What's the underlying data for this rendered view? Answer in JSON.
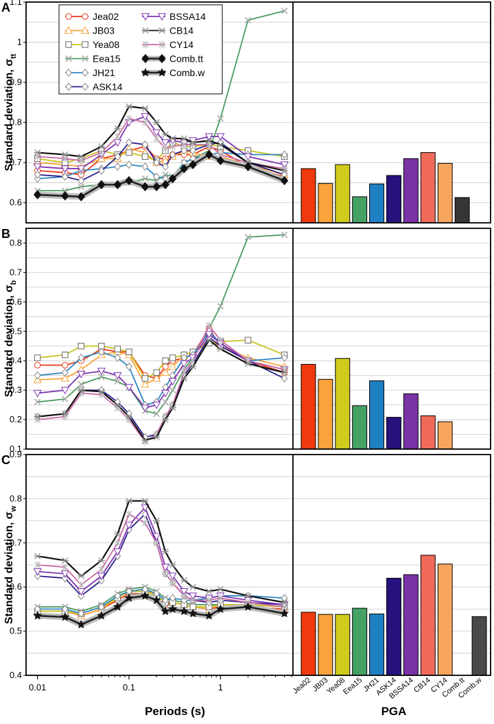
{
  "chart_data": {
    "type": "line",
    "xlabel": "Periods (s)",
    "bar_xlabel": "PGA",
    "x_ticks": [
      "0.01",
      "0.1",
      "1"
    ],
    "x_periods": [
      0.01,
      0.02,
      0.03,
      0.05,
      0.075,
      0.1,
      0.15,
      0.2,
      0.25,
      0.3,
      0.4,
      0.5,
      0.75,
      1,
      2,
      5
    ],
    "models": [
      {
        "key": "Jea02",
        "name": "Jea02",
        "color": "#e8381a",
        "marker": "circle"
      },
      {
        "key": "JB03",
        "name": "JB03",
        "color": "#f7a43a",
        "marker": "triangle"
      },
      {
        "key": "Yea08",
        "name": "Yea08",
        "color": "#c9c31b",
        "marker": "square"
      },
      {
        "key": "Eea15",
        "name": "Eea15",
        "color": "#4a9c5e",
        "marker": "x"
      },
      {
        "key": "JH21",
        "name": "JH21",
        "color": "#2c86c2",
        "marker": "diamond"
      },
      {
        "key": "ASK14",
        "name": "ASK14",
        "color": "#2a1f8c",
        "marker": "diamond"
      },
      {
        "key": "BSSA14",
        "name": "BSSA14",
        "color": "#7d35b0",
        "marker": "invtriangle"
      },
      {
        "key": "CB14",
        "name": "CB14",
        "color": "#111111",
        "marker": "starx"
      },
      {
        "key": "CY14",
        "name": "CY14",
        "color": "#c96aa5",
        "marker": "asterisk"
      },
      {
        "key": "Combtt",
        "name": "Comb.tt",
        "color": "#111111",
        "marker": "bigdiamond"
      },
      {
        "key": "Combw",
        "name": "Comb.w",
        "color": "#111111",
        "marker": "star"
      }
    ],
    "panels": [
      {
        "letter": "A",
        "ylabel": "Standard deviation, σ",
        "ysub": "tt",
        "ylim": [
          0.55,
          1.1
        ],
        "yticks": [
          0.6,
          0.7,
          0.8,
          0.9,
          1.0,
          1.1
        ],
        "ytick_labels": [
          "0.6",
          "0.7",
          "0.8",
          "0.9",
          "1",
          "1.1"
        ],
        "series": {
          "Jea02": [
            0.68,
            0.675,
            0.67,
            0.71,
            0.72,
            0.73,
            0.74,
            0.71,
            0.71,
            0.72,
            0.72,
            0.72,
            0.74,
            0.73,
            0.69,
            0.665
          ],
          "JB03": [
            0.7,
            0.695,
            0.69,
            0.71,
            0.71,
            0.735,
            0.725,
            0.7,
            0.705,
            0.715,
            0.73,
            0.725,
            0.715,
            0.715,
            0.695,
            0.67
          ],
          "Yea08": [
            0.71,
            0.7,
            0.71,
            0.73,
            0.72,
            0.725,
            0.715,
            0.705,
            0.73,
            0.75,
            0.74,
            0.74,
            0.745,
            0.74,
            0.73,
            0.715
          ],
          "Eea15": [
            0.63,
            0.63,
            0.64,
            0.645,
            0.645,
            0.65,
            0.66,
            0.655,
            0.67,
            0.665,
            0.7,
            0.71,
            0.73,
            0.81,
            1.055,
            1.078
          ],
          "JH21": [
            0.66,
            0.665,
            0.68,
            0.685,
            0.69,
            0.695,
            0.69,
            0.665,
            0.66,
            0.66,
            0.7,
            0.71,
            0.72,
            0.725,
            0.72,
            0.72
          ],
          "ASK14": [
            0.67,
            0.665,
            0.655,
            0.68,
            0.715,
            0.75,
            0.745,
            0.7,
            0.69,
            0.72,
            0.73,
            0.73,
            0.745,
            0.75,
            0.7,
            0.67
          ],
          "BSSA14": [
            0.69,
            0.685,
            0.685,
            0.72,
            0.75,
            0.8,
            0.815,
            0.775,
            0.75,
            0.755,
            0.75,
            0.755,
            0.765,
            0.765,
            0.715,
            0.695
          ],
          "CB14": [
            0.725,
            0.72,
            0.715,
            0.74,
            0.785,
            0.84,
            0.835,
            0.8,
            0.77,
            0.76,
            0.76,
            0.75,
            0.755,
            0.745,
            0.7,
            0.68
          ],
          "CY14": [
            0.715,
            0.71,
            0.705,
            0.725,
            0.765,
            0.81,
            0.8,
            0.76,
            0.735,
            0.74,
            0.745,
            0.745,
            0.745,
            0.72,
            0.7,
            0.685
          ],
          "Combtt": [
            0.62,
            0.617,
            0.615,
            0.645,
            0.645,
            0.655,
            0.64,
            0.64,
            0.645,
            0.66,
            0.685,
            0.695,
            0.72,
            0.705,
            0.69,
            0.655
          ]
        },
        "bars": {
          "Jea02": 0.685,
          "JB03": 0.648,
          "Yea08": 0.695,
          "Eea15": 0.615,
          "JH21": 0.647,
          "ASK14": 0.668,
          "BSSA14": 0.71,
          "CB14": 0.725,
          "CY14": 0.698,
          "Combtt": 0.613
        }
      },
      {
        "letter": "B",
        "ylabel": "Standard deviation, σ",
        "ysub": "b",
        "ylim": [
          0.1,
          0.85
        ],
        "yticks": [
          0.1,
          0.2,
          0.3,
          0.4,
          0.5,
          0.6,
          0.7,
          0.8
        ],
        "ytick_labels": [
          "0.1",
          "0.2",
          "0.3",
          "0.4",
          "0.5",
          "0.6",
          "0.7",
          "0.8"
        ],
        "series": {
          "Jea02": [
            0.385,
            0.385,
            0.4,
            0.44,
            0.43,
            0.43,
            0.35,
            0.34,
            0.38,
            0.4,
            0.41,
            0.42,
            0.51,
            0.45,
            0.4,
            0.36
          ],
          "JB03": [
            0.335,
            0.34,
            0.37,
            0.42,
            0.43,
            0.42,
            0.32,
            0.34,
            0.36,
            0.38,
            0.42,
            0.43,
            0.47,
            0.45,
            0.41,
            0.38
          ],
          "Yea08": [
            0.41,
            0.42,
            0.45,
            0.45,
            0.44,
            0.43,
            0.34,
            0.36,
            0.4,
            0.41,
            0.42,
            0.43,
            0.46,
            0.465,
            0.47,
            0.42
          ],
          "Eea15": [
            0.26,
            0.27,
            0.32,
            0.345,
            0.33,
            0.31,
            0.23,
            0.22,
            0.26,
            0.3,
            0.37,
            0.41,
            0.51,
            0.585,
            0.82,
            0.828
          ],
          "JH21": [
            0.35,
            0.36,
            0.41,
            0.43,
            0.41,
            0.38,
            0.25,
            0.26,
            0.31,
            0.35,
            0.41,
            0.42,
            0.5,
            0.46,
            0.4,
            0.41
          ],
          "ASK14": [
            0.21,
            0.22,
            0.3,
            0.3,
            0.26,
            0.22,
            0.14,
            0.15,
            0.21,
            0.25,
            0.35,
            0.39,
            0.48,
            0.45,
            0.4,
            0.34
          ],
          "BSSA14": [
            0.29,
            0.3,
            0.355,
            0.365,
            0.35,
            0.31,
            0.24,
            0.25,
            0.29,
            0.33,
            0.39,
            0.41,
            0.49,
            0.46,
            0.4,
            0.37
          ],
          "CB14": [
            0.21,
            0.22,
            0.3,
            0.295,
            0.25,
            0.21,
            0.13,
            0.14,
            0.2,
            0.24,
            0.34,
            0.38,
            0.47,
            0.44,
            0.39,
            0.36
          ],
          "CY14": [
            0.2,
            0.21,
            0.29,
            0.285,
            0.24,
            0.2,
            0.125,
            0.15,
            0.21,
            0.25,
            0.36,
            0.4,
            0.52,
            0.47,
            0.4,
            0.37
          ]
        },
        "bars": {
          "Jea02": 0.388,
          "JB03": 0.337,
          "Yea08": 0.408,
          "Eea15": 0.247,
          "JH21": 0.332,
          "ASK14": 0.208,
          "BSSA14": 0.288,
          "CB14": 0.213,
          "CY14": 0.193
        }
      },
      {
        "letter": "C",
        "ylabel": "Standard deviation, σ",
        "ysub": "w",
        "ylim": [
          0.4,
          0.9
        ],
        "yticks": [
          0.4,
          0.5,
          0.6,
          0.7,
          0.8,
          0.9
        ],
        "ytick_labels": [
          "0.4",
          "0.5",
          "0.6",
          "0.7",
          "0.8",
          "0.9"
        ],
        "series": {
          "Jea02": [
            0.545,
            0.545,
            0.535,
            0.55,
            0.57,
            0.585,
            0.585,
            0.575,
            0.56,
            0.565,
            0.56,
            0.555,
            0.55,
            0.555,
            0.555,
            0.55
          ],
          "JB03": [
            0.545,
            0.545,
            0.535,
            0.55,
            0.575,
            0.59,
            0.595,
            0.58,
            0.565,
            0.565,
            0.56,
            0.555,
            0.55,
            0.56,
            0.56,
            0.555
          ],
          "Yea08": [
            0.545,
            0.545,
            0.54,
            0.555,
            0.575,
            0.59,
            0.59,
            0.58,
            0.565,
            0.565,
            0.56,
            0.555,
            0.555,
            0.56,
            0.56,
            0.555
          ],
          "Eea15": [
            0.555,
            0.555,
            0.545,
            0.56,
            0.585,
            0.595,
            0.6,
            0.59,
            0.575,
            0.57,
            0.565,
            0.56,
            0.56,
            0.56,
            0.56,
            0.555
          ],
          "JH21": [
            0.55,
            0.55,
            0.54,
            0.555,
            0.58,
            0.59,
            0.595,
            0.585,
            0.57,
            0.575,
            0.57,
            0.57,
            0.575,
            0.58,
            0.58,
            0.575
          ],
          "ASK14": [
            0.625,
            0.62,
            0.58,
            0.615,
            0.67,
            0.73,
            0.765,
            0.7,
            0.63,
            0.61,
            0.58,
            0.57,
            0.565,
            0.57,
            0.565,
            0.56
          ],
          "BSSA14": [
            0.635,
            0.63,
            0.59,
            0.625,
            0.68,
            0.74,
            0.78,
            0.715,
            0.645,
            0.625,
            0.59,
            0.58,
            0.575,
            0.58,
            0.57,
            0.56
          ],
          "CB14": [
            0.67,
            0.66,
            0.625,
            0.66,
            0.72,
            0.795,
            0.795,
            0.75,
            0.68,
            0.65,
            0.615,
            0.6,
            0.59,
            0.595,
            0.58,
            0.565
          ],
          "CY14": [
            0.65,
            0.645,
            0.605,
            0.64,
            0.7,
            0.765,
            0.745,
            0.7,
            0.63,
            0.61,
            0.58,
            0.57,
            0.57,
            0.575,
            0.565,
            0.555
          ],
          "Combw": [
            0.535,
            0.532,
            0.515,
            0.535,
            0.555,
            0.575,
            0.58,
            0.57,
            0.545,
            0.55,
            0.545,
            0.54,
            0.535,
            0.55,
            0.555,
            0.54
          ]
        },
        "bars": {
          "Jea02": 0.543,
          "JB03": 0.538,
          "Yea08": 0.538,
          "Eea15": 0.552,
          "JH21": 0.539,
          "ASK14": 0.62,
          "BSSA14": 0.628,
          "CB14": 0.672,
          "CY14": 0.652,
          "Combw": 0.533
        }
      }
    ],
    "bar_categories": [
      "Jea02",
      "JB03",
      "Yea08",
      "Eea15",
      "JH21",
      "ASK14",
      "BSSA14",
      "CB14",
      "CY14",
      "Comb.tt",
      "Comb.w"
    ],
    "bar_keys": [
      "Jea02",
      "JB03",
      "Yea08",
      "Eea15",
      "JH21",
      "ASK14",
      "BSSA14",
      "CB14",
      "CY14",
      "Combtt",
      "Combw"
    ],
    "bar_colors": {
      "Jea02": "#f03a0e",
      "JB03": "#f9a33c",
      "Yea08": "#cfcc1d",
      "Eea15": "#45a265",
      "JH21": "#1f7fc3",
      "ASK14": "#26117d",
      "BSSA14": "#7a33a6",
      "CB14": "#f06a5a",
      "CY14": "#f7a55e",
      "Combtt": "#353535",
      "Combw": "#4a4a4a"
    }
  }
}
